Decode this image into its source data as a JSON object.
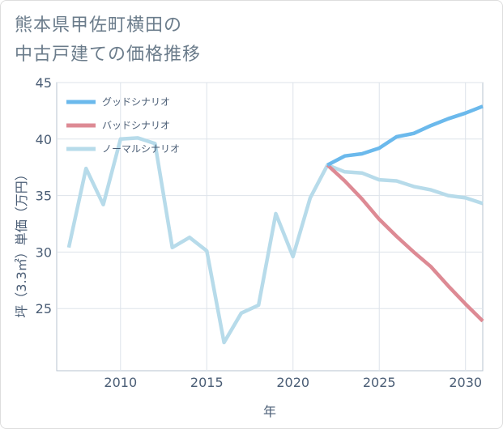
{
  "title_lines": [
    "熊本県甲佐町横田の",
    "中古戸建ての価格推移"
  ],
  "chart_data": {
    "type": "line",
    "title": "熊本県甲佐町横田の中古戸建ての価格推移",
    "xlabel": "年",
    "ylabel": "坪（3.3㎡）単価（万円）",
    "xlim": [
      2006.3,
      2031
    ],
    "ylim": [
      19.5,
      45
    ],
    "xticks": [
      2010,
      2015,
      2020,
      2025,
      2030
    ],
    "yticks": [
      25,
      30,
      35,
      40,
      45
    ],
    "grid": true,
    "legend_position": "top-left",
    "series": [
      {
        "name": "グッドシナリオ",
        "color": "#6bb9ec",
        "x": [
          2022,
          2023,
          2024,
          2025,
          2026,
          2027,
          2028,
          2029,
          2030,
          2031
        ],
        "values": [
          37.7,
          38.5,
          38.7,
          39.2,
          40.2,
          40.5,
          41.2,
          41.8,
          42.3,
          42.9
        ]
      },
      {
        "name": "バッドシナリオ",
        "color": "#dd8a94",
        "x": [
          2022,
          2023,
          2024,
          2025,
          2026,
          2027,
          2028,
          2029,
          2030,
          2031
        ],
        "values": [
          37.7,
          36.3,
          34.7,
          32.9,
          31.4,
          30.0,
          28.7,
          27.0,
          25.4,
          23.9
        ]
      },
      {
        "name": "ノーマルシナリオ",
        "color": "#b7dbea",
        "x": [
          2007,
          2008,
          2009,
          2010,
          2011,
          2012,
          2013,
          2014,
          2015,
          2016,
          2017,
          2018,
          2019,
          2020,
          2021,
          2022,
          2023,
          2024,
          2025,
          2026,
          2027,
          2028,
          2029,
          2030,
          2031
        ],
        "values": [
          30.4,
          37.4,
          34.2,
          40.0,
          40.1,
          39.6,
          30.4,
          31.3,
          30.1,
          22.0,
          24.6,
          25.3,
          33.4,
          29.6,
          34.8,
          37.7,
          37.1,
          37.0,
          36.4,
          36.3,
          35.8,
          35.5,
          35.0,
          34.8,
          34.3
        ]
      }
    ]
  }
}
